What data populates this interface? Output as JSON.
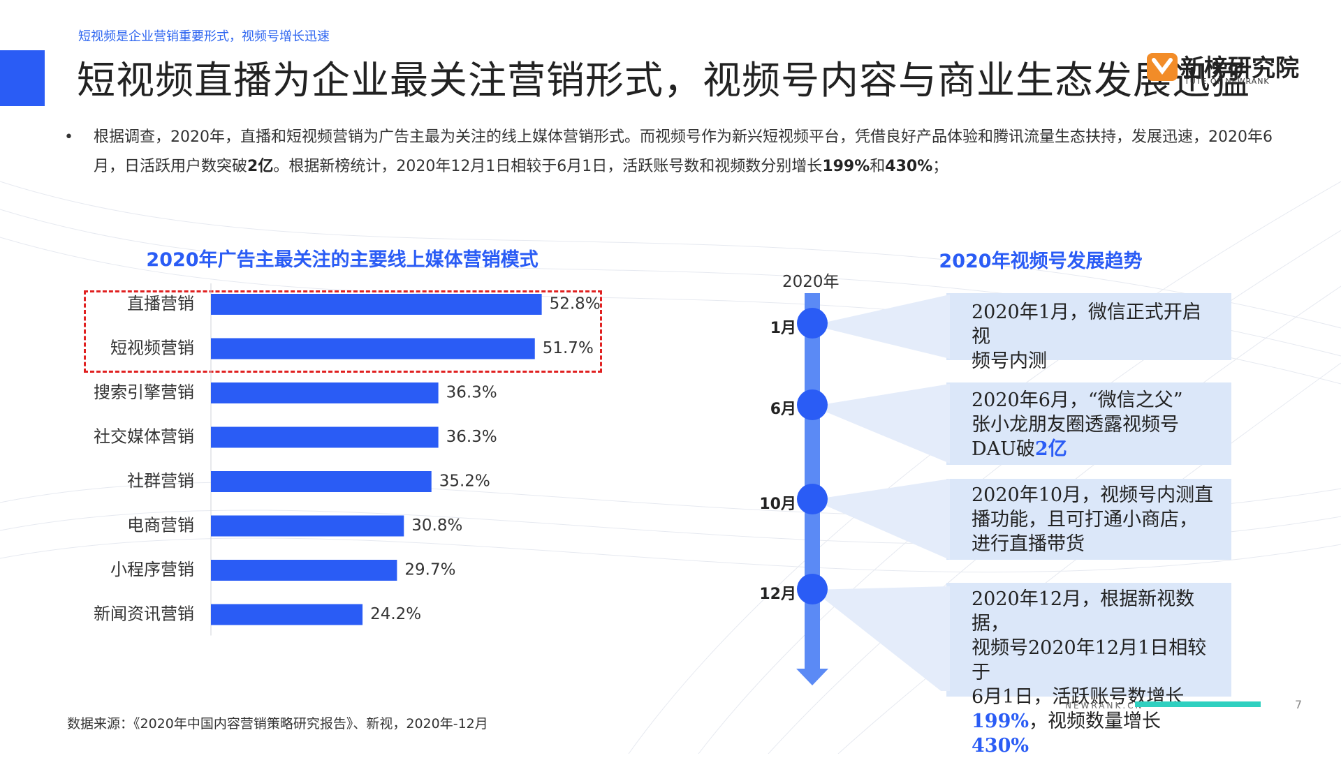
{
  "header": {
    "tag": "短视频是企业营销重要形式，视频号增长迅速",
    "title": "短视频直播为企业最关注营销形式，视频号内容与商业生态发展迅猛",
    "logo_name": "新榜研究院",
    "logo_sub": "TUTE OF NEWRANK"
  },
  "intro": {
    "bullet": "•",
    "part1": "根据调查，2020年，直播和短视频营销为广告主最为关注的线上媒体营销形式。而视频号作为新兴短视频平台，凭借良好产品体验和腾讯流量生态扶持，发展迅速，2020年6月，日活跃用户数突破",
    "bold1": "2亿",
    "part2": "。根据新榜统计，2020年12月1日相较于6月1日，活跃账号数和视频数分别增长",
    "bold2": "199%",
    "part3": "和",
    "bold3": "430%",
    "part4": "；"
  },
  "chart_data": {
    "type": "bar",
    "orientation": "horizontal",
    "title": "2020年广告主最关注的主要线上媒体营销模式",
    "categories": [
      "直播营销",
      "短视频营销",
      "搜索引擎营销",
      "社交媒体营销",
      "社群营销",
      "电商营销",
      "小程序营销",
      "新闻资讯营销"
    ],
    "values": [
      52.8,
      51.7,
      36.3,
      36.3,
      35.2,
      30.8,
      29.7,
      24.2
    ],
    "value_labels": [
      "52.8%",
      "51.7%",
      "36.3%",
      "36.3%",
      "35.2%",
      "30.8%",
      "29.7%",
      "24.2%"
    ],
    "unit": "%",
    "highlighted_categories": [
      "直播营销",
      "短视频营销"
    ],
    "bar_color": "#2a5cf5",
    "highlight_color": "#e02020",
    "xlim": [
      0,
      60
    ],
    "grid": false
  },
  "timeline": {
    "title": "2020年视频号发展趋势",
    "year": "2020年",
    "items": [
      {
        "month": "1月",
        "lines": [
          "2020年1月，微信正式开启视",
          "频号内测"
        ]
      },
      {
        "month": "6月",
        "lines": [
          "2020年6月，“微信之父”",
          "张小龙朋友圈透露视频号",
          "DAU破"
        ],
        "emph": "2亿"
      },
      {
        "month": "10月",
        "lines": [
          "2020年10月，视频号内测直",
          "播功能，且可打通小商店，",
          "进行直播带货"
        ]
      },
      {
        "month": "12月",
        "lines": [
          "2020年12月，根据新视数据，",
          "视频号2020年12月1日相较于",
          "6月1日，活跃账号数增长"
        ],
        "emph_a": "199%",
        "mid": "，视频数量增长",
        "emph_b": "430%"
      }
    ]
  },
  "footer": {
    "source": "数据来源：《2020年中国内容营销策略研究报告》、新视，2020年-12月",
    "brand": "NEWRANK.CN",
    "page": "7"
  },
  "colors": {
    "accent": "#2a5cf5",
    "timeline_box": "#dbe7f9",
    "timeline_bar": "#5b8af5",
    "footer_line": "#2fd0c0",
    "logo_orange": "#f28c28"
  }
}
